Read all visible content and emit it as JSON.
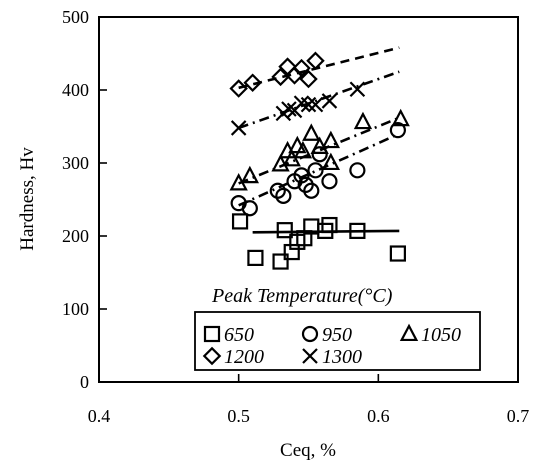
{
  "chart_data": {
    "type": "scatter",
    "xlabel": "Ceq, %",
    "ylabel": "Hardness, Hv",
    "xlim": [
      0.4,
      0.7
    ],
    "ylim": [
      0,
      500
    ],
    "x_ticks": [
      "0.4",
      "0.5",
      "0.6",
      "0.7"
    ],
    "y_ticks": [
      "0",
      "100",
      "200",
      "300",
      "400",
      "500"
    ],
    "grid": false,
    "legend_title": "Peak Temperature(°C)",
    "legend_position": "bottom-right",
    "series": [
      {
        "name": "650",
        "marker": "square",
        "points": [
          [
            0.501,
            220
          ],
          [
            0.512,
            170
          ],
          [
            0.53,
            165
          ],
          [
            0.533,
            208
          ],
          [
            0.538,
            178
          ],
          [
            0.542,
            192
          ],
          [
            0.547,
            197
          ],
          [
            0.552,
            213
          ],
          [
            0.562,
            207
          ],
          [
            0.565,
            215
          ],
          [
            0.585,
            207
          ],
          [
            0.614,
            176
          ]
        ],
        "trend": {
          "style": "solid",
          "x": [
            0.51,
            0.615
          ],
          "y": [
            205,
            207
          ]
        }
      },
      {
        "name": "950",
        "marker": "circle",
        "points": [
          [
            0.5,
            245
          ],
          [
            0.508,
            238
          ],
          [
            0.528,
            262
          ],
          [
            0.532,
            255
          ],
          [
            0.54,
            275
          ],
          [
            0.545,
            283
          ],
          [
            0.548,
            270
          ],
          [
            0.552,
            262
          ],
          [
            0.555,
            290
          ],
          [
            0.558,
            312
          ],
          [
            0.565,
            275
          ],
          [
            0.585,
            290
          ],
          [
            0.614,
            345
          ]
        ],
        "trend": {
          "style": "dash-dot",
          "x": [
            0.5,
            0.615
          ],
          "y": [
            242,
            340
          ]
        }
      },
      {
        "name": "1050",
        "marker": "triangle",
        "points": [
          [
            0.5,
            272
          ],
          [
            0.508,
            282
          ],
          [
            0.53,
            298
          ],
          [
            0.535,
            316
          ],
          [
            0.538,
            305
          ],
          [
            0.542,
            323
          ],
          [
            0.546,
            316
          ],
          [
            0.552,
            340
          ],
          [
            0.558,
            322
          ],
          [
            0.566,
            330
          ],
          [
            0.566,
            300
          ],
          [
            0.589,
            356
          ],
          [
            0.616,
            360
          ]
        ],
        "trend": {
          "style": "dash-dot",
          "x": [
            0.5,
            0.615
          ],
          "y": [
            272,
            362
          ]
        }
      },
      {
        "name": "1200",
        "marker": "diamond",
        "points": [
          [
            0.5,
            402
          ],
          [
            0.51,
            410
          ],
          [
            0.53,
            418
          ],
          [
            0.535,
            432
          ],
          [
            0.54,
            420
          ],
          [
            0.545,
            430
          ],
          [
            0.55,
            415
          ],
          [
            0.555,
            440
          ]
        ],
        "trend": {
          "style": "dashed",
          "x": [
            0.5,
            0.615
          ],
          "y": [
            403,
            458
          ]
        }
      },
      {
        "name": "1300",
        "marker": "x",
        "points": [
          [
            0.5,
            348
          ],
          [
            0.532,
            368
          ],
          [
            0.536,
            374
          ],
          [
            0.54,
            372
          ],
          [
            0.545,
            382
          ],
          [
            0.55,
            380
          ],
          [
            0.555,
            380
          ],
          [
            0.565,
            385
          ],
          [
            0.585,
            401
          ]
        ],
        "trend": {
          "style": "dash-dot",
          "x": [
            0.5,
            0.615
          ],
          "y": [
            348,
            425
          ]
        }
      }
    ]
  }
}
